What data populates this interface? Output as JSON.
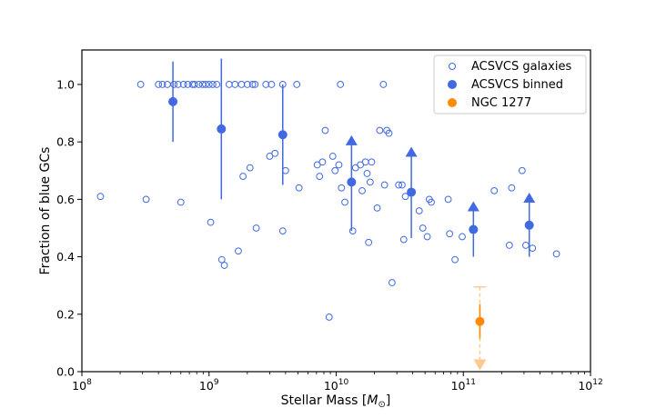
{
  "chart_data": {
    "type": "scatter",
    "xlabel": "Stellar Mass [",
    "xlabel_math": "M",
    "xlabel_sub": "⊙",
    "xlabel_end": "]",
    "ylabel": "Fraction of blue GCs",
    "xscale": "log",
    "xlim": [
      100000000.0,
      1000000000000.0
    ],
    "ylim": [
      0.0,
      1.12
    ],
    "x_ticks": [
      {
        "value": 100000000.0,
        "base": "10",
        "exp": "8"
      },
      {
        "value": 1000000000.0,
        "base": "10",
        "exp": "9"
      },
      {
        "value": 10000000000.0,
        "base": "10",
        "exp": "10"
      },
      {
        "value": 100000000000.0,
        "base": "10",
        "exp": "11"
      },
      {
        "value": 1000000000000.0,
        "base": "10",
        "exp": "12"
      }
    ],
    "y_ticks": [
      {
        "value": 0.0,
        "label": "0.0"
      },
      {
        "value": 0.2,
        "label": "0.2"
      },
      {
        "value": 0.4,
        "label": "0.4"
      },
      {
        "value": 0.6,
        "label": "0.6"
      },
      {
        "value": 0.8,
        "label": "0.8"
      },
      {
        "value": 1.0,
        "label": "1.0"
      }
    ],
    "colors": {
      "blue": "#4169e1",
      "orange": "#ff8c00",
      "orange_light": "#ffc98f"
    },
    "legend": {
      "placement": "top-right",
      "entries": [
        {
          "label": "ACSVCS galaxies",
          "marker": "open-circle",
          "color": "#4169e1"
        },
        {
          "label": "ACSVCS binned",
          "marker": "filled-circle",
          "color": "#4169e1"
        },
        {
          "label": "NGC 1277",
          "marker": "filled-circle",
          "color": "#ff8c00"
        }
      ]
    },
    "series": [
      {
        "name": "ACSVCS galaxies",
        "marker": "open-circle",
        "points": [
          [
            140000000.0,
            0.61
          ],
          [
            290000000.0,
            1.0
          ],
          [
            320000000.0,
            0.6
          ],
          [
            400000000.0,
            1.0
          ],
          [
            430000000.0,
            1.0
          ],
          [
            470000000.0,
            1.0
          ],
          [
            530000000.0,
            1.0
          ],
          [
            570000000.0,
            1.0
          ],
          [
            600000000.0,
            0.59
          ],
          [
            630000000.0,
            1.0
          ],
          [
            680000000.0,
            1.0
          ],
          [
            740000000.0,
            1.0
          ],
          [
            770000000.0,
            1.0
          ],
          [
            830000000.0,
            1.0
          ],
          [
            890000000.0,
            1.0
          ],
          [
            940000000.0,
            1.0
          ],
          [
            1000000000.0,
            1.0
          ],
          [
            1030000000.0,
            0.52
          ],
          [
            1070000000.0,
            1.0
          ],
          [
            1150000000.0,
            1.0
          ],
          [
            1260000000.0,
            0.39
          ],
          [
            1320000000.0,
            0.37
          ],
          [
            1440000000.0,
            1.0
          ],
          [
            1600000000.0,
            1.0
          ],
          [
            1700000000.0,
            0.42
          ],
          [
            1800000000.0,
            1.0
          ],
          [
            1850000000.0,
            0.68
          ],
          [
            2000000000.0,
            1.0
          ],
          [
            2100000000.0,
            0.71
          ],
          [
            2200000000.0,
            1.0
          ],
          [
            2300000000.0,
            1.0
          ],
          [
            2350000000.0,
            0.5
          ],
          [
            2800000000.0,
            1.0
          ],
          [
            3000000000.0,
            0.75
          ],
          [
            3100000000.0,
            1.0
          ],
          [
            3300000000.0,
            0.76
          ],
          [
            3800000000.0,
            1.0
          ],
          [
            3800000000.0,
            0.49
          ],
          [
            4000000000.0,
            0.7
          ],
          [
            4900000000.0,
            1.0
          ],
          [
            5100000000.0,
            0.64
          ],
          [
            7100000000.0,
            0.72
          ],
          [
            7400000000.0,
            0.68
          ],
          [
            7800000000.0,
            0.73
          ],
          [
            8200000000.0,
            0.84
          ],
          [
            8800000000.0,
            0.19
          ],
          [
            9400000000.0,
            0.75
          ],
          [
            9800000000.0,
            0.7
          ],
          [
            10500000000.0,
            0.72
          ],
          [
            10800000000.0,
            1.0
          ],
          [
            11000000000.0,
            0.64
          ],
          [
            11700000000.0,
            0.59
          ],
          [
            13500000000.0,
            0.49
          ],
          [
            14200000000.0,
            0.71
          ],
          [
            15500000000.0,
            0.72
          ],
          [
            16000000000.0,
            0.63
          ],
          [
            17000000000.0,
            0.73
          ],
          [
            17500000000.0,
            0.69
          ],
          [
            18000000000.0,
            0.45
          ],
          [
            18500000000.0,
            0.66
          ],
          [
            19000000000.0,
            0.73
          ],
          [
            21000000000.0,
            0.57
          ],
          [
            22000000000.0,
            0.84
          ],
          [
            23500000000.0,
            1.0
          ],
          [
            24000000000.0,
            0.65
          ],
          [
            25000000000.0,
            0.84
          ],
          [
            26000000000.0,
            0.83
          ],
          [
            27500000000.0,
            0.31
          ],
          [
            31000000000.0,
            0.65
          ],
          [
            33000000000.0,
            0.65
          ],
          [
            34000000000.0,
            0.46
          ],
          [
            35000000000.0,
            0.61
          ],
          [
            45000000000.0,
            0.56
          ],
          [
            48000000000.0,
            0.5
          ],
          [
            52000000000.0,
            0.47
          ],
          [
            54000000000.0,
            0.6
          ],
          [
            56000000000.0,
            0.59
          ],
          [
            78000000000.0,
            0.48
          ],
          [
            76000000000.0,
            0.6
          ],
          [
            86000000000.0,
            0.39
          ],
          [
            98000000000.0,
            0.47
          ],
          [
            175000000000.0,
            0.63
          ],
          [
            230000000000.0,
            0.44
          ],
          [
            240000000000.0,
            0.64
          ],
          [
            290000000000.0,
            0.7
          ],
          [
            310000000000.0,
            0.44
          ],
          [
            350000000000.0,
            0.43
          ],
          [
            540000000000.0,
            0.41
          ]
        ]
      },
      {
        "name": "ACSVCS binned",
        "marker": "filled-circle",
        "points": [
          {
            "x": 520000000.0,
            "y": 0.94,
            "err_low": 0.8,
            "err_high": 1.08,
            "lower_limit": false
          },
          {
            "x": 1250000000.0,
            "y": 0.845,
            "err_low": 0.6,
            "err_high": 1.09,
            "lower_limit": false
          },
          {
            "x": 3800000000.0,
            "y": 0.825,
            "err_low": 0.65,
            "err_high": 1.0,
            "lower_limit": false
          },
          {
            "x": 13200000000.0,
            "y": 0.66,
            "err_low": 0.49,
            "err_high": 0.82,
            "lower_limit": true
          },
          {
            "x": 39000000000.0,
            "y": 0.625,
            "err_low": 0.465,
            "err_high": 0.78,
            "lower_limit": true
          },
          {
            "x": 120000000000.0,
            "y": 0.495,
            "err_low": 0.4,
            "err_high": 0.59,
            "lower_limit": true
          },
          {
            "x": 330000000000.0,
            "y": 0.51,
            "err_low": 0.4,
            "err_high": 0.62,
            "lower_limit": true
          }
        ]
      },
      {
        "name": "NGC 1277",
        "marker": "filled-circle",
        "points": [
          {
            "x": 135000000000.0,
            "y": 0.175,
            "err_low": 0.115,
            "err_high": 0.235,
            "sys_low": 0.03,
            "sys_high": 0.295,
            "upper_limit": true
          }
        ]
      }
    ]
  }
}
